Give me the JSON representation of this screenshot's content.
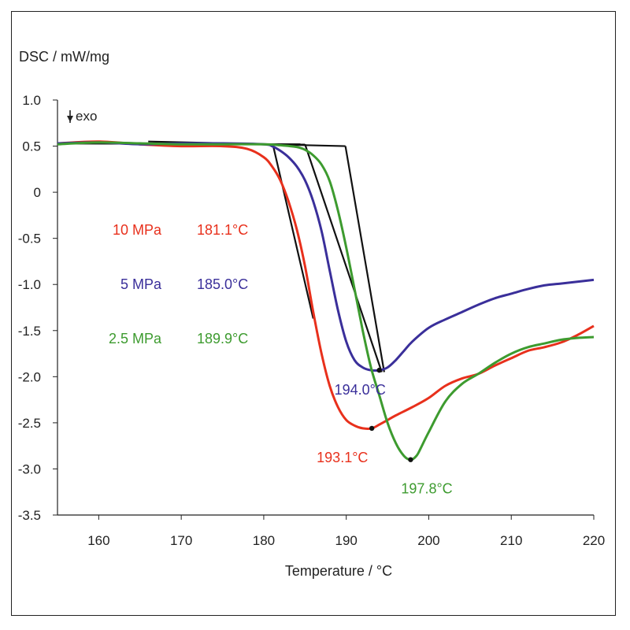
{
  "chart_data": {
    "type": "line",
    "ylabel": "DSC / mW/mg",
    "xlabel": "Temperature / °C",
    "exo_label": "exo",
    "xlim": [
      155,
      220
    ],
    "ylim": [
      -3.5,
      1.0
    ],
    "x_ticks": [
      160,
      170,
      180,
      190,
      200,
      210,
      220
    ],
    "x_tick_labels": [
      "160",
      "170",
      "180",
      "190",
      "200",
      "210",
      "220"
    ],
    "y_ticks": [
      1.0,
      0.5,
      0,
      -0.5,
      -1.0,
      -1.5,
      -2.0,
      -2.5,
      -3.0,
      -3.5
    ],
    "y_tick_labels": [
      "1.0",
      "0.5",
      "0",
      "-0.5",
      "-1.0",
      "-1.5",
      "-2.0",
      "-2.5",
      "-3.0",
      "-3.5"
    ],
    "grid": false,
    "legend_entries": [
      {
        "pressure": "10 MPa",
        "onset": "181.1°C",
        "color": "#e8301c"
      },
      {
        "pressure": "5 MPa",
        "onset": "185.0°C",
        "color": "#3a2f9a"
      },
      {
        "pressure": "2.5 MPa",
        "onset": "189.9°C",
        "color": "#3d9b2f"
      }
    ],
    "series": [
      {
        "color": "#e8301c",
        "x": [
          155,
          160,
          165,
          170,
          175,
          178,
          180,
          181,
          182,
          183,
          184,
          185,
          186,
          187,
          188,
          189,
          190,
          191,
          192,
          193.1,
          194,
          195,
          196,
          198,
          200,
          202,
          204,
          206,
          208,
          210,
          212,
          214,
          216,
          218,
          220
        ],
        "y": [
          0.53,
          0.55,
          0.52,
          0.5,
          0.5,
          0.47,
          0.38,
          0.28,
          0.13,
          -0.1,
          -0.4,
          -0.8,
          -1.3,
          -1.75,
          -2.1,
          -2.33,
          -2.47,
          -2.53,
          -2.56,
          -2.56,
          -2.52,
          -2.47,
          -2.42,
          -2.33,
          -2.23,
          -2.1,
          -2.02,
          -1.97,
          -1.88,
          -1.8,
          -1.72,
          -1.68,
          -1.63,
          -1.55,
          -1.45
        ]
      },
      {
        "color": "#3a2f9a",
        "x": [
          155,
          160,
          165,
          170,
          175,
          180,
          181,
          182,
          183,
          184,
          185,
          186,
          187,
          188,
          189,
          190,
          191,
          192,
          193,
          194,
          195,
          196,
          197,
          198,
          200,
          202,
          204,
          206,
          208,
          210,
          212,
          214,
          216,
          218,
          220
        ],
        "y": [
          0.53,
          0.54,
          0.52,
          0.53,
          0.53,
          0.52,
          0.5,
          0.45,
          0.38,
          0.28,
          0.13,
          -0.1,
          -0.42,
          -0.85,
          -1.28,
          -1.62,
          -1.82,
          -1.9,
          -1.93,
          -1.93,
          -1.9,
          -1.82,
          -1.72,
          -1.62,
          -1.47,
          -1.38,
          -1.3,
          -1.22,
          -1.15,
          -1.1,
          -1.05,
          -1.01,
          -0.99,
          -0.97,
          -0.95
        ]
      },
      {
        "color": "#3d9b2f",
        "x": [
          155,
          160,
          165,
          170,
          175,
          180,
          182,
          184,
          185,
          186,
          187,
          188,
          189,
          190,
          191,
          192,
          193,
          194,
          195,
          196,
          197,
          197.8,
          198.5,
          199,
          200,
          202,
          204,
          206,
          208,
          210,
          212,
          214,
          216,
          218,
          220
        ],
        "y": [
          0.52,
          0.54,
          0.53,
          0.52,
          0.52,
          0.52,
          0.51,
          0.49,
          0.46,
          0.4,
          0.3,
          0.12,
          -0.2,
          -0.6,
          -1.05,
          -1.5,
          -1.9,
          -2.2,
          -2.5,
          -2.72,
          -2.86,
          -2.9,
          -2.86,
          -2.78,
          -2.6,
          -2.27,
          -2.08,
          -1.97,
          -1.85,
          -1.75,
          -1.68,
          -1.64,
          -1.6,
          -1.58,
          -1.57
        ]
      }
    ],
    "onset_lines": [
      {
        "baseline": [
          [
            155,
            0.53
          ],
          [
            181.1,
            0.52
          ]
        ],
        "tangent": [
          [
            181.1,
            0.52
          ],
          [
            186,
            -1.37
          ]
        ]
      },
      {
        "baseline": [
          [
            155,
            0.53
          ],
          [
            185.0,
            0.52
          ]
        ],
        "tangent": [
          [
            185.0,
            0.52
          ],
          [
            194.3,
            -1.95
          ]
        ]
      },
      {
        "baseline": [
          [
            166,
            0.55
          ],
          [
            189.9,
            0.5
          ]
        ],
        "tangent": [
          [
            189.9,
            0.5
          ],
          [
            194.6,
            -1.95
          ]
        ]
      }
    ],
    "peaks": [
      {
        "x": 194.0,
        "y": -1.93,
        "label": "194.0°C",
        "color": "#3a2f9a"
      },
      {
        "x": 193.1,
        "y": -2.56,
        "label": "193.1°C",
        "color": "#e8301c"
      },
      {
        "x": 197.8,
        "y": -2.9,
        "label": "197.8°C",
        "color": "#3d9b2f"
      }
    ]
  }
}
